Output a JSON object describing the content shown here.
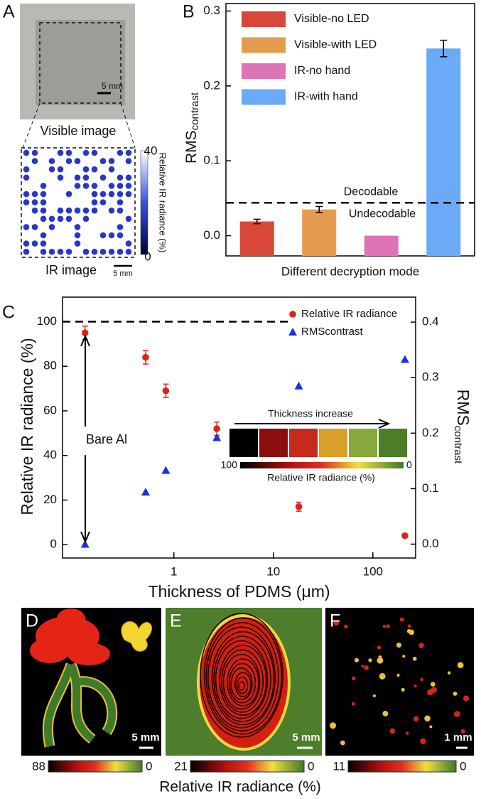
{
  "figure": {
    "panel_labels": [
      "A",
      "B",
      "C",
      "D",
      "E",
      "F"
    ],
    "panel_a": {
      "visible_scale": "5 mm",
      "visible_caption": "Visible image",
      "ir_colorbar_max": 40,
      "ir_colorbar_min": 0,
      "ir_colorbar_label": "Relative IR radiance (%)",
      "ir_caption": "IR image",
      "ir_scale": "5 mm"
    },
    "images": [
      {
        "scale": "5 mm",
        "colorbar_max": 88,
        "colorbar_min": 0
      },
      {
        "scale": "5 mm",
        "colorbar_max": 21,
        "colorbar_min": 0
      },
      {
        "scale": "1 mm",
        "colorbar_max": 11,
        "colorbar_min": 0
      }
    ],
    "colorbar_label": "Relative IR radiance (%)"
  },
  "chart_data": [
    {
      "type": "bar",
      "ylabel": "RMS",
      "ylabel_sub": "contrast",
      "xlabel": "Different decryption mode",
      "categories": [
        null,
        null,
        null,
        null
      ],
      "series": [
        {
          "name": "Visible-no LED",
          "color": "#d9473a",
          "values": [
            0.019,
            null,
            null,
            null
          ],
          "errors": [
            0.003,
            null,
            null,
            null
          ]
        },
        {
          "name": "Visible-with LED",
          "color": "#e39c4f",
          "values": [
            null,
            0.035,
            null,
            null
          ],
          "errors": [
            null,
            0.004,
            null,
            null
          ]
        },
        {
          "name": "IR-no hand",
          "color": "#dc74b6",
          "values": [
            null,
            null,
            0.0,
            null
          ],
          "errors": [
            null,
            null,
            null,
            null
          ]
        },
        {
          "name": "IR-with hand",
          "color": "#6aaaf7",
          "values": [
            null,
            null,
            null,
            0.25
          ],
          "errors": [
            null,
            null,
            null,
            0.011
          ]
        }
      ],
      "ylim": [
        -0.027,
        0.31
      ],
      "yticks": [
        {
          "value": 0,
          "label": "0.0"
        },
        {
          "value": 0.1,
          "label": "0.1"
        },
        {
          "value": 0.2,
          "label": "0.2"
        },
        {
          "value": 0.3,
          "label": "0.3"
        }
      ],
      "threshold": {
        "value": 0.044,
        "above": "Decodable",
        "below": "Undecodable"
      },
      "legend": "upper left"
    },
    {
      "type": "scatter",
      "xlabel": "Thickness of PDMS (μm)",
      "ylabel": "Relative IR radiance (%)",
      "y2label": "RMS",
      "y2label_sub": "contrast",
      "xscale": "log",
      "xlim": [
        0.076,
        269
      ],
      "xticks": [
        1,
        10,
        100
      ],
      "ylim": [
        -6,
        111
      ],
      "yticks": [
        0,
        20,
        40,
        60,
        80,
        100
      ],
      "y2lim": [
        -0.025,
        0.445
      ],
      "y2ticks": [
        {
          "value": 0,
          "label": "0.0"
        },
        {
          "value": 0.1,
          "label": "0.1"
        },
        {
          "value": 0.2,
          "label": "0.2"
        },
        {
          "value": 0.3,
          "label": "0.3"
        },
        {
          "value": 0.4,
          "label": "0.4"
        }
      ],
      "x": [
        0.128,
        0.52,
        0.83,
        2.7,
        18,
        210
      ],
      "series": [
        {
          "name": "Relative IR radiance",
          "color": "#d7261e",
          "marker": "circle",
          "values": [
            95,
            84,
            69,
            52,
            17,
            4
          ],
          "errors": [
            3,
            3,
            3,
            3,
            2,
            null
          ]
        },
        {
          "name": "RMScontrast",
          "color": "#1f2ee0",
          "marker": "triangle",
          "axis": "y2",
          "values": [
            0.0,
            0.094,
            0.133,
            0.192,
            0.285,
            0.333
          ]
        }
      ],
      "reference_line": 100,
      "annotation": "Bare Al",
      "inset": {
        "title": "Thickness increase",
        "max": 100,
        "min": 0,
        "label": "Relative IR radiance (%)"
      },
      "legend": "upper right"
    }
  ]
}
